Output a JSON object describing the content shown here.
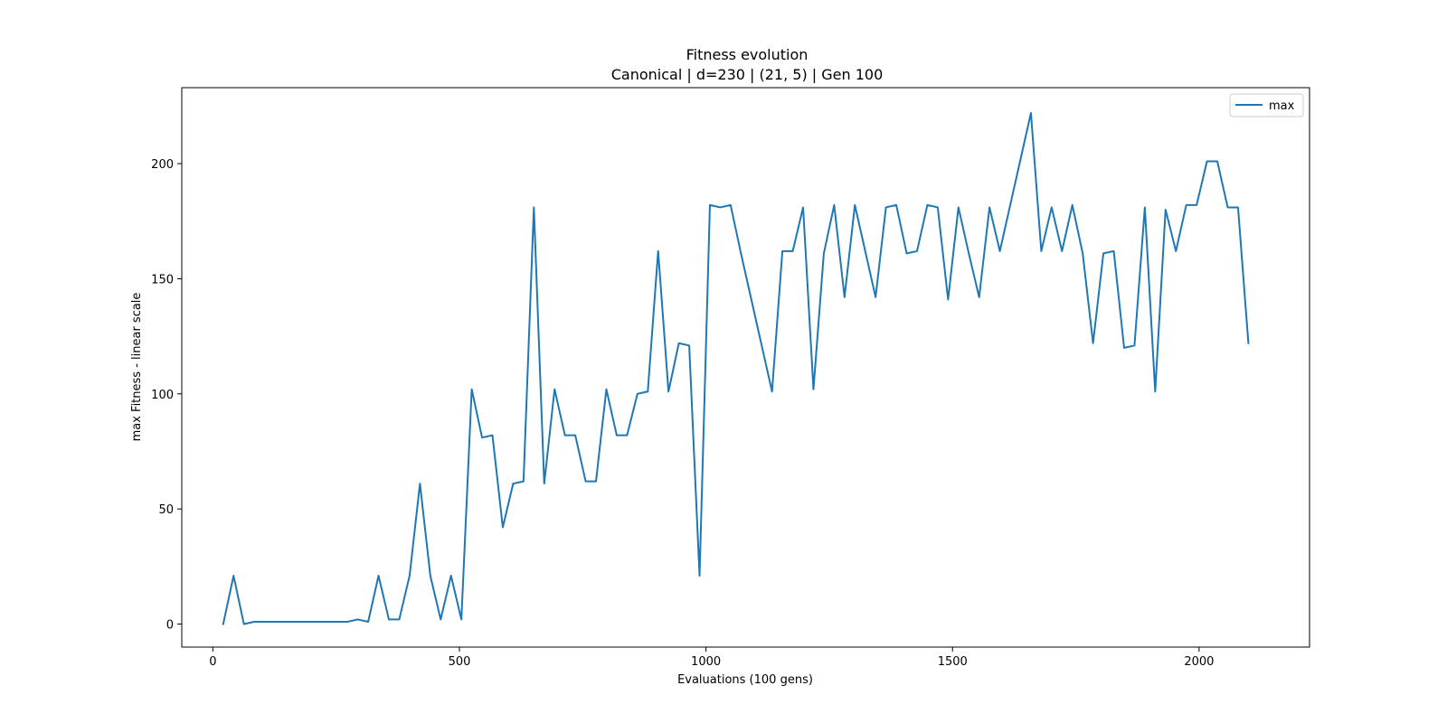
{
  "chart_data": {
    "type": "line",
    "title": "Fitness evolution",
    "subtitle": "Canonical | d=230 | (21, 5) | Gen 100",
    "xlabel": "Evaluations (100 gens)",
    "ylabel": "max Fitness - linear scale",
    "xlim": [
      -63,
      2224
    ],
    "ylim": [
      -10,
      233
    ],
    "xticks": [
      0,
      500,
      1000,
      1500,
      2000
    ],
    "yticks": [
      0,
      50,
      100,
      150,
      200
    ],
    "grid": false,
    "legend_position": "top-right",
    "series": [
      {
        "name": "max",
        "color": "#1f77b4",
        "x": [
          21,
          42,
          63,
          84,
          105,
          126,
          147,
          168,
          189,
          210,
          231,
          252,
          273,
          294,
          315,
          336,
          357,
          378,
          399,
          420,
          441,
          462,
          483,
          504,
          525,
          546,
          567,
          588,
          609,
          630,
          651,
          672,
          693,
          714,
          735,
          756,
          777,
          798,
          819,
          840,
          861,
          882,
          903,
          924,
          945,
          966,
          987,
          1008,
          1029,
          1050,
          1071,
          1092,
          1113,
          1134,
          1155,
          1176,
          1197,
          1218,
          1239,
          1260,
          1281,
          1302,
          1323,
          1344,
          1365,
          1386,
          1407,
          1428,
          1449,
          1470,
          1491,
          1512,
          1533,
          1554,
          1575,
          1596,
          1617,
          1638,
          1659,
          1680,
          1701,
          1722,
          1743,
          1764,
          1785,
          1806,
          1827,
          1848,
          1869,
          1890,
          1911,
          1932,
          1953,
          1974,
          1995,
          2016,
          2037,
          2058,
          2079,
          2100
        ],
        "y": [
          0,
          21,
          0,
          1,
          1,
          1,
          1,
          1,
          1,
          1,
          1,
          1,
          1,
          2,
          1,
          21,
          2,
          2,
          21,
          61,
          21,
          2,
          21,
          2,
          102,
          81,
          82,
          42,
          61,
          62,
          181,
          61,
          102,
          82,
          82,
          62,
          62,
          102,
          82,
          82,
          100,
          101,
          162,
          101,
          122,
          121,
          21,
          182,
          181,
          182,
          161,
          141,
          121,
          101,
          162,
          162,
          181,
          102,
          161,
          182,
          142,
          182,
          162,
          142,
          181,
          182,
          161,
          162,
          182,
          181,
          141,
          181,
          161,
          142,
          181,
          162,
          182,
          202,
          222,
          162,
          181,
          162,
          182,
          161,
          122,
          161,
          162,
          120,
          121,
          181,
          101,
          180,
          162,
          182,
          182,
          201,
          201,
          181,
          181,
          122
        ]
      }
    ]
  }
}
